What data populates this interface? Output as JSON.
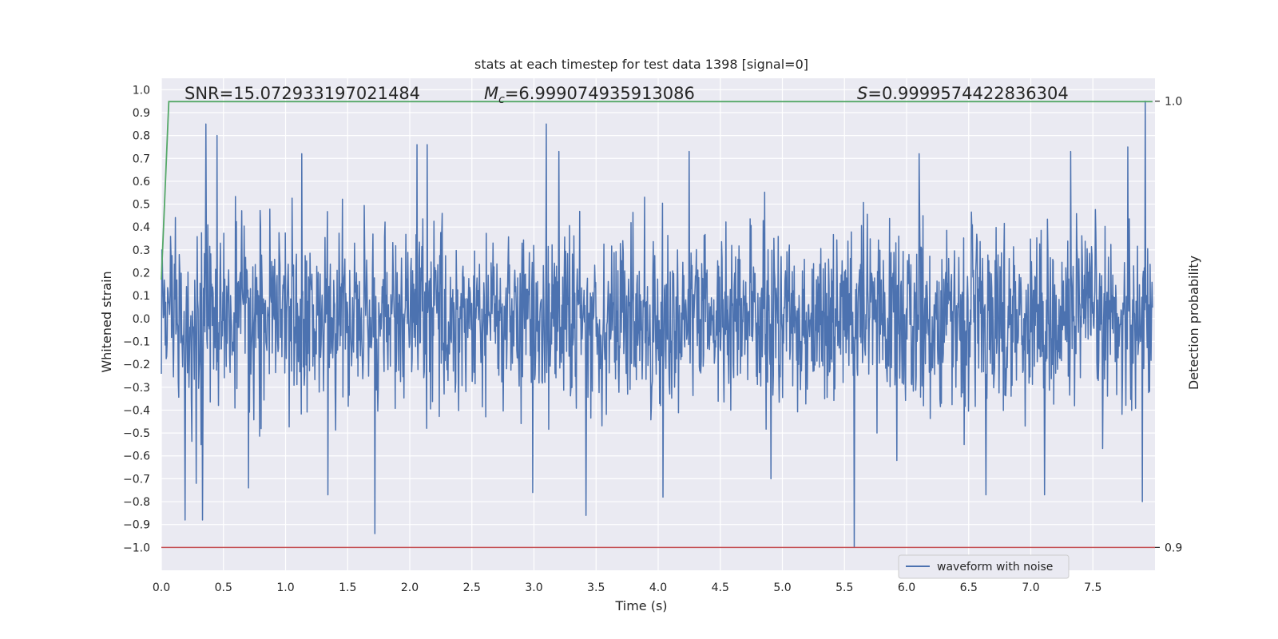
{
  "chart_data": {
    "type": "line",
    "title": "stats at each timestep for test data 1398 [signal=0]",
    "xlabel": "Time (s)",
    "ylabel": "Whitened strain",
    "y2label": "Detection probability",
    "xlim": [
      0,
      8.0
    ],
    "ylim": [
      -1.1,
      1.05
    ],
    "y2lim": [
      0.9,
      1.0
    ],
    "grid": true,
    "xticks": [
      "0.0",
      "0.5",
      "1.0",
      "1.5",
      "2.0",
      "2.5",
      "3.0",
      "3.5",
      "4.0",
      "4.5",
      "5.0",
      "5.5",
      "6.0",
      "6.5",
      "7.0",
      "7.5"
    ],
    "yticks": [
      "1.0",
      "0.9",
      "0.8",
      "0.7",
      "0.6",
      "0.5",
      "0.4",
      "0.3",
      "0.2",
      "0.1",
      "0.0",
      "−0.1",
      "−0.2",
      "−0.3",
      "−0.4",
      "−0.5",
      "−0.6",
      "−0.7",
      "−0.8",
      "−0.9",
      "−1.0"
    ],
    "y2ticks": [
      "1.0",
      "0.9"
    ],
    "annotations": {
      "snr": "SNR=15.072933197021484",
      "mc_symbol": "M",
      "mc_sub": "c",
      "mc_value": "=6.999074935913086",
      "s_symbol": "S",
      "s_value": "=0.9999574422836304"
    },
    "legend": {
      "label": "waveform with noise",
      "position": "lower right"
    },
    "series": [
      {
        "name": "waveform with noise",
        "axis": "left",
        "color": "#4c72b0",
        "description_stats": {
          "approx_amplitude": 0.45,
          "n_samples": 2048
        },
        "spikes": [
          [
            0.36,
            0.85
          ],
          [
            3.1,
            0.85
          ],
          [
            7.92,
            0.95
          ],
          [
            7.9,
            0.84
          ],
          [
            0.45,
            0.8
          ],
          [
            1.13,
            0.72
          ],
          [
            2.06,
            0.76
          ],
          [
            2.14,
            0.76
          ],
          [
            3.2,
            0.73
          ],
          [
            4.25,
            0.73
          ],
          [
            5.58,
            0.74
          ],
          [
            6.1,
            0.72
          ],
          [
            7.32,
            0.73
          ],
          [
            7.78,
            0.75
          ],
          [
            1.72,
            -0.94
          ],
          [
            5.58,
            -1.0
          ],
          [
            0.19,
            -0.88
          ],
          [
            0.33,
            -0.88
          ],
          [
            3.42,
            -0.86
          ],
          [
            4.04,
            -0.78
          ],
          [
            1.34,
            -0.77
          ],
          [
            7.9,
            -0.8
          ],
          [
            6.64,
            -0.77
          ],
          [
            7.11,
            -0.77
          ],
          [
            0.28,
            -0.72
          ],
          [
            0.7,
            -0.74
          ],
          [
            4.91,
            -0.7
          ],
          [
            2.99,
            -0.76
          ]
        ]
      },
      {
        "name": "",
        "axis": "right",
        "color": "#55a868",
        "x": [
          0,
          0.06,
          7.98
        ],
        "values": [
          0.96,
          0.9999,
          0.9999
        ]
      },
      {
        "name": "",
        "axis": "left",
        "color": "#c44e52",
        "x": [
          0,
          8.0
        ],
        "values": [
          -1.0,
          -1.0
        ]
      }
    ]
  }
}
